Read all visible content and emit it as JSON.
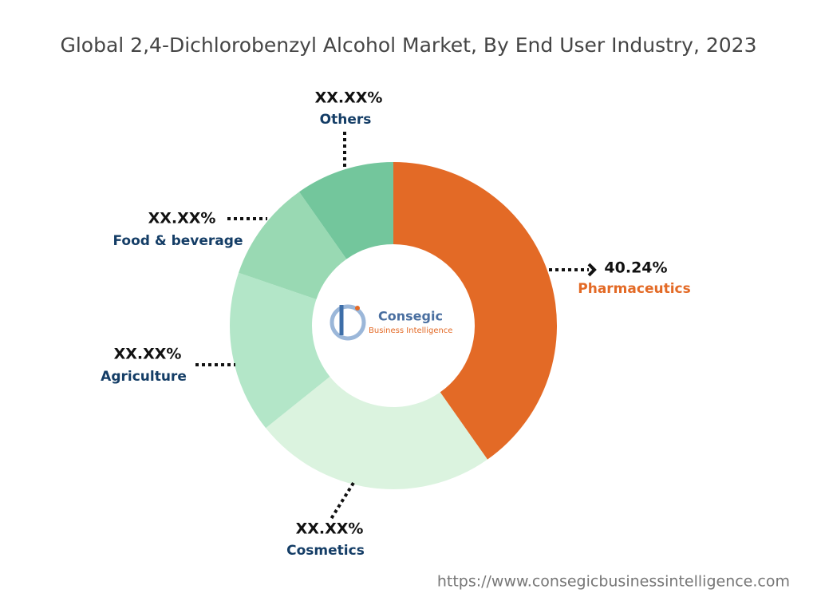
{
  "chart_data": {
    "type": "donut",
    "title": "Global 2,4-Dichlorobenzyl Alcohol Market, By End User Industry, 2023",
    "categories": [
      "Pharmaceutics",
      "Cosmetics",
      "Agriculture",
      "Food & beverage",
      "Others"
    ],
    "values": [
      40.24,
      24,
      16,
      10,
      9.76
    ],
    "value_labels": [
      "40.24%",
      "XX.XX%",
      "XX.XX%",
      "XX.XX%",
      "XX.XX%"
    ],
    "colors": [
      "#e36a26",
      "#dbf3df",
      "#b3e6c8",
      "#99d9b3",
      "#73c69c"
    ]
  },
  "logo": {
    "name": "Consegic",
    "tagline": "Business Intelligence"
  },
  "footer": {
    "url": "https://www.consegicbusinessintelligence.com"
  }
}
